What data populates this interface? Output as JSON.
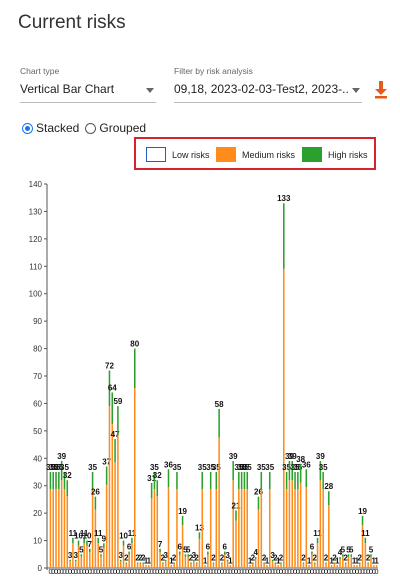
{
  "header": {
    "title": "Current risks"
  },
  "controls": {
    "chart_type_label": "Chart type",
    "chart_type_value": "Vertical Bar Chart",
    "filter_label": "Filter by risk analysis",
    "filter_value": "09,18, 2023-02-03-Test2, 2023-...",
    "download_icon": "download-icon"
  },
  "mode": {
    "stacked_label": "Stacked",
    "grouped_label": "Grouped",
    "selected": "stacked"
  },
  "legend": {
    "low": {
      "label": "Low risks",
      "color": "#ffffff"
    },
    "medium": {
      "label": "Medium risks",
      "color": "#ff8c1a"
    },
    "high": {
      "label": "High risks",
      "color": "#2ca02c"
    }
  },
  "chart_data": {
    "type": "bar",
    "stacked": true,
    "ylim": [
      0,
      140
    ],
    "yticks": [
      0,
      10,
      20,
      30,
      40,
      50,
      60,
      70,
      80,
      90,
      100,
      110,
      120,
      130,
      140
    ],
    "grid": false,
    "legend_position": "top-right",
    "series": [
      {
        "name": "Low risks",
        "color": "#ffffff"
      },
      {
        "name": "Medium risks",
        "color": "#ff8c1a"
      },
      {
        "name": "High risks",
        "color": "#2ca02c"
      }
    ],
    "totals": [
      35,
      35,
      35,
      35,
      39,
      35,
      32,
      3,
      11,
      3,
      10,
      5,
      11,
      10,
      7,
      35,
      26,
      11,
      5,
      9,
      37,
      72,
      64,
      47,
      59,
      3,
      10,
      2,
      6,
      11,
      80,
      2,
      2,
      2,
      1,
      1,
      31,
      35,
      32,
      7,
      2,
      3,
      36,
      1,
      2,
      35,
      6,
      19,
      5,
      5,
      2,
      3,
      2,
      13,
      35,
      1,
      6,
      35,
      2,
      35,
      58,
      2,
      6,
      3,
      1,
      39,
      21,
      35,
      35,
      35,
      35,
      1,
      2,
      4,
      26,
      35,
      2,
      1,
      35,
      3,
      2,
      1,
      2,
      133,
      35,
      39,
      39,
      35,
      35,
      38,
      2,
      36,
      1,
      6,
      2,
      11,
      39,
      35,
      2,
      28,
      1,
      2,
      1,
      4,
      5,
      2,
      5,
      5,
      1,
      1,
      2,
      19,
      11,
      2,
      5,
      1,
      1
    ],
    "medium_fraction": 0.82
  }
}
